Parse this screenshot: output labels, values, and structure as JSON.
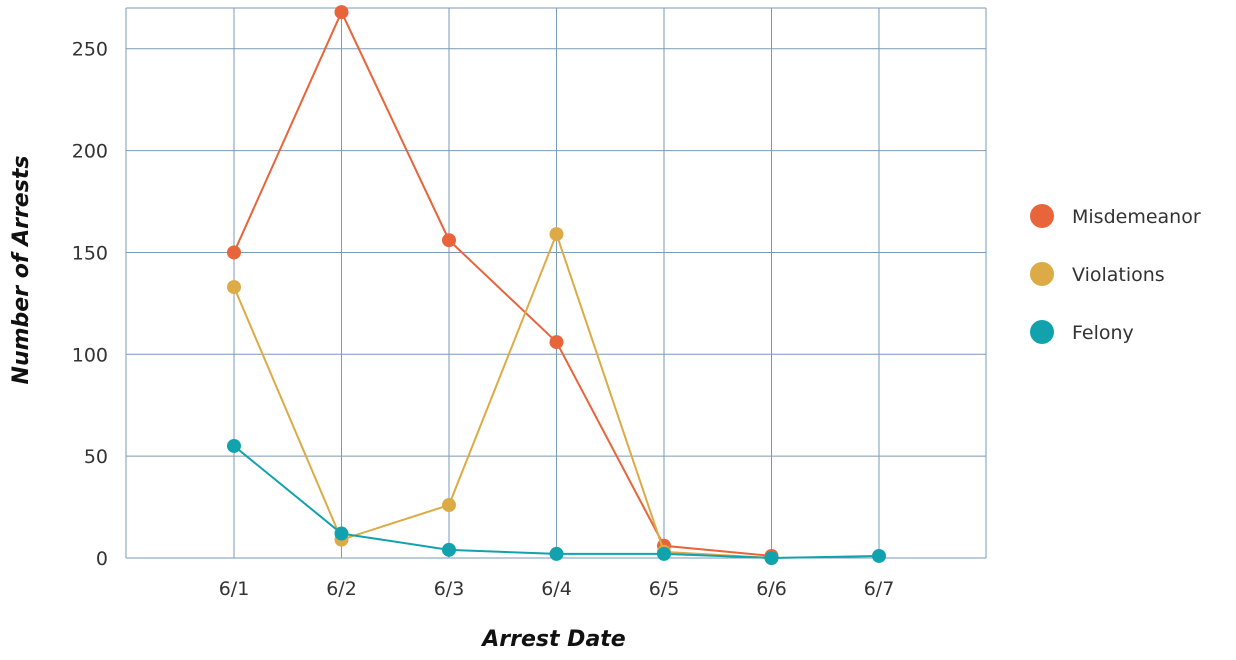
{
  "chart_data": {
    "type": "line",
    "title": "",
    "xlabel": "Arrest Date",
    "ylabel": "Number of Arrests",
    "categories": [
      "6/1",
      "6/2",
      "6/3",
      "6/4",
      "6/5",
      "6/6",
      "6/7"
    ],
    "y_ticks": [
      "0",
      "50",
      "100",
      "150",
      "200",
      "250"
    ],
    "ylim": [
      0,
      270
    ],
    "grid": true,
    "legend_position": "right",
    "series": [
      {
        "name": "Misdemeanor",
        "color": "#e8643a",
        "values": [
          150,
          268,
          156,
          106,
          6,
          1,
          null
        ]
      },
      {
        "name": "Violations",
        "color": "#dcab45",
        "values": [
          133,
          9,
          26,
          159,
          3,
          0,
          null
        ]
      },
      {
        "name": "Felony",
        "color": "#12a2ae",
        "values": [
          55,
          12,
          4,
          2,
          2,
          0,
          1
        ]
      }
    ]
  }
}
